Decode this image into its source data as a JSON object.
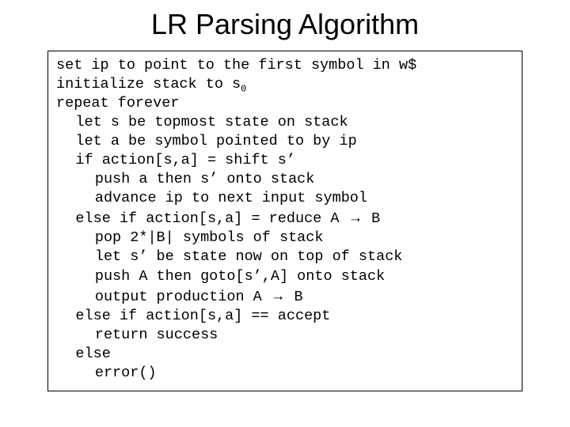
{
  "title": "LR Parsing Algorithm",
  "code": {
    "l01a": "set ip to point to the first symbol in w$",
    "l02a": "initialize stack to s",
    "l02sub": "0",
    "l03a": "repeat forever",
    "l04a": "let s be topmost state on stack",
    "l05a": "let a be symbol pointed to by ip",
    "l06a": "if action[s,a] = shift s’",
    "l07a": "push a then s’ onto stack",
    "l08a": "advance ip to next input symbol",
    "l09a": "else if action[s,a] = reduce A ",
    "l09arrow": "→",
    "l09b": " B",
    "l10a": "pop 2*|B| symbols of stack",
    "l11a": "let s’ be state now on top of stack",
    "l12a": "push A then goto[s’,A] onto stack",
    "l13a": "output production A ",
    "l13arrow": "→",
    "l13b": " B",
    "l14a": "else if action[s,a] == accept",
    "l15a": "return success",
    "l16a": "else",
    "l17a": "error()"
  },
  "style": {
    "background": "#ffffff",
    "title_fontsize": 36,
    "code_fontsize": 18.5,
    "code_fontfamily": "Courier New",
    "border_color": "#000000",
    "text_color": "#000000"
  }
}
